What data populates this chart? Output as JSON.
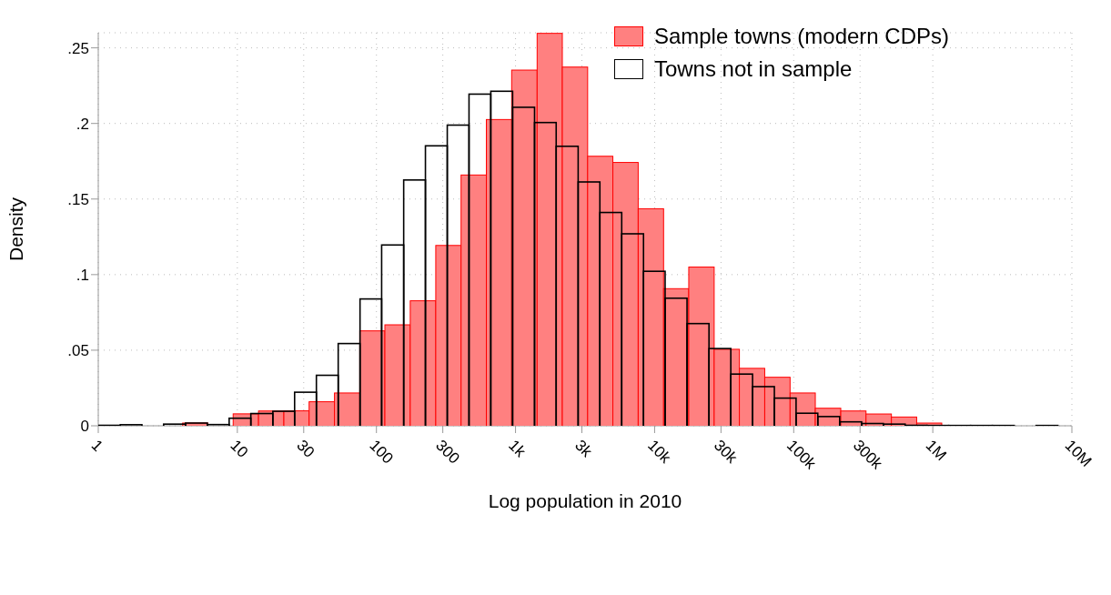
{
  "chart_data": {
    "type": "histogram",
    "xlabel": "Log population in 2010",
    "ylabel": "Density",
    "log": "x",
    "xlim": [
      1,
      10000000
    ],
    "ylim": [
      0,
      0.26
    ],
    "xticks": [
      1,
      10,
      30,
      100,
      300,
      {
        "value": 1000,
        "label": "1k"
      },
      {
        "value": 3000,
        "label": "3k"
      },
      {
        "value": 10000,
        "label": "10k"
      },
      {
        "value": 30000,
        "label": "30k"
      },
      {
        "value": 100000,
        "label": "100k"
      },
      {
        "value": 300000,
        "label": "300k"
      },
      {
        "value": 1000000,
        "label": "1M"
      },
      {
        "value": 10000000,
        "label": "10M"
      }
    ],
    "yticks": [
      0,
      {
        "value": 0.05,
        "label": ".05"
      },
      {
        "value": 0.1,
        "label": ".1"
      },
      {
        "value": 0.15,
        "label": ".15"
      },
      {
        "value": 0.2,
        "label": ".2"
      },
      {
        "value": 0.25,
        "label": ".25"
      }
    ],
    "grid": true,
    "legend": "top right",
    "bins": [
      4.04,
      6.14,
      9.33,
      14.2,
      21.6,
      32.8,
      49.9,
      75.9,
      115,
      175,
      267,
      406,
      617,
      938,
      1430,
      2170,
      3300,
      5010,
      7620,
      11600,
      17600,
      26800,
      40700,
      61900,
      94200,
      143000,
      218000,
      331000,
      504000,
      766000,
      1160000
    ],
    "series": [
      {
        "name": "Sample towns (modern CDPs)",
        "color": "#ff8080",
        "values": [
          0.0018,
          0,
          0.0079,
          0.0098,
          0.0099,
          0.0159,
          0.0217,
          0.0628,
          0.0668,
          0.0827,
          0.1193,
          0.1659,
          0.2026,
          0.2353,
          0.2596,
          0.2373,
          0.1783,
          0.1742,
          0.1436,
          0.0907,
          0.105,
          0.0506,
          0.038,
          0.0321,
          0.0217,
          0.0116,
          0.0098,
          0.0078,
          0.0058,
          0.0018
        ]
      },
      {
        "name": "Towns not in sample",
        "color": "#000000",
        "bins": [
          1,
          1.44,
          2.06,
          2.95,
          4.24,
          6.08,
          8.73,
          12.5,
          18.0,
          25.8,
          37.0,
          53.1,
          76.2,
          109,
          157,
          225,
          323,
          463,
          664,
          953,
          1370,
          1960,
          2820,
          4040,
          5800,
          8320,
          11900,
          17100,
          24600,
          35300,
          50600,
          72600,
          104000,
          149000,
          214000,
          308000,
          441000,
          633000,
          909000,
          1300000,
          1870000,
          2680000,
          3850000,
          5530000,
          7930000
        ],
        "values": [
          0.0003,
          0.0007,
          0,
          0.0011,
          0.0018,
          0.0008,
          0.005,
          0.0081,
          0.0096,
          0.0222,
          0.0334,
          0.0544,
          0.0839,
          0.1196,
          0.1626,
          0.1852,
          0.1989,
          0.2194,
          0.2213,
          0.2107,
          0.2006,
          0.1849,
          0.1613,
          0.1411,
          0.127,
          0.1022,
          0.0844,
          0.0676,
          0.0511,
          0.0342,
          0.0259,
          0.0183,
          0.0083,
          0.0061,
          0.0026,
          0.0015,
          0.0011,
          0.0003,
          0.0002,
          0.0002,
          0.0002,
          0.0002,
          0,
          0.0002
        ]
      }
    ]
  }
}
